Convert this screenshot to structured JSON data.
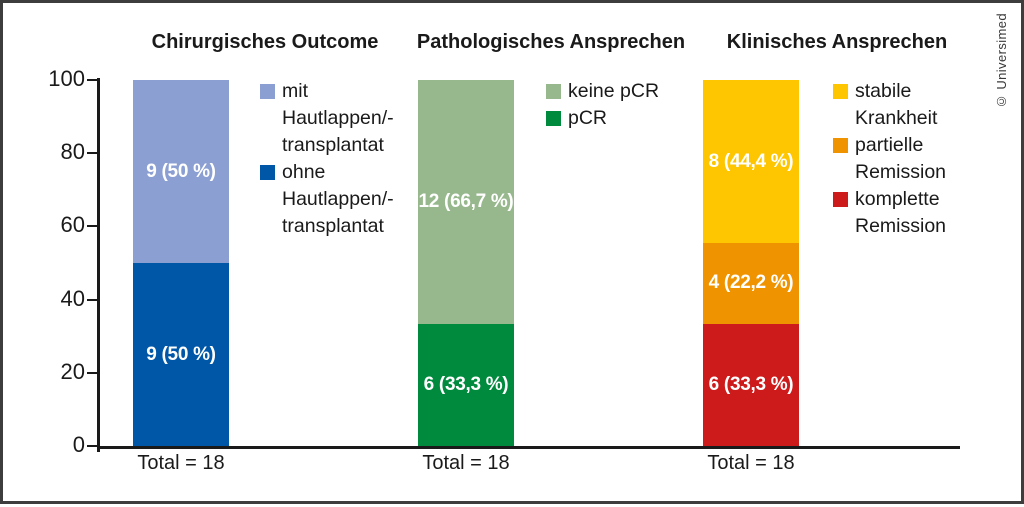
{
  "copyright": "© Universimed",
  "colors": {
    "axis": "#1a1a1a",
    "text": "#1a1a1a",
    "bar_label": "#ffffff",
    "frame": "#3d3d3d",
    "light_blue": "#8c9fd2",
    "dark_blue": "#0057a7",
    "light_green": "#97b78d",
    "dark_green": "#008a3e",
    "yellow": "#fdc600",
    "orange": "#f09300",
    "red": "#cd1a1a"
  },
  "chart_data": {
    "type": "bar",
    "stacked": true,
    "ylim": [
      0,
      100
    ],
    "yticks": [
      0,
      20,
      40,
      60,
      80,
      100
    ],
    "grid": false,
    "legend_position": "right-of-each-bar",
    "groups": [
      {
        "title": "Chirurgisches Outcome",
        "x_label": "Total = 18",
        "total": 18,
        "segments": [
          {
            "name": "ohne Hautlappen/-transplantat",
            "count": 9,
            "pct": 50,
            "display": "9 (50 %)",
            "color": "#0057a7"
          },
          {
            "name": "mit Hautlappen/-transplantat",
            "count": 9,
            "pct": 50,
            "display": "9 (50 %)",
            "color": "#8c9fd2"
          }
        ],
        "legend": [
          {
            "label": "mit\nHautlappen/-\ntransplantat",
            "color": "#8c9fd2"
          },
          {
            "label": "ohne\nHautlappen/-\ntransplantat",
            "color": "#0057a7"
          }
        ]
      },
      {
        "title": "Pathologisches Ansprechen",
        "x_label": "Total = 18",
        "total": 18,
        "segments": [
          {
            "name": "pCR",
            "count": 6,
            "pct": 33.3,
            "display": "6 (33,3 %)",
            "color": "#008a3e"
          },
          {
            "name": "keine pCR",
            "count": 12,
            "pct": 66.7,
            "display": "12 (66,7 %)",
            "color": "#97b78d"
          }
        ],
        "legend": [
          {
            "label": "keine pCR",
            "color": "#97b78d"
          },
          {
            "label": "pCR",
            "color": "#008a3e"
          }
        ]
      },
      {
        "title": "Klinisches Ansprechen",
        "x_label": "Total = 18",
        "total": 18,
        "segments": [
          {
            "name": "komplette Remission",
            "count": 6,
            "pct": 33.3,
            "display": "6 (33,3 %)",
            "color": "#cd1a1a"
          },
          {
            "name": "partielle Remission",
            "count": 4,
            "pct": 22.2,
            "display": "4 (22,2 %)",
            "color": "#f09300"
          },
          {
            "name": "stabile Krankheit",
            "count": 8,
            "pct": 44.4,
            "display": "8 (44,4 %)",
            "color": "#fdc600"
          }
        ],
        "legend": [
          {
            "label": "stabile\nKrankheit",
            "color": "#fdc600"
          },
          {
            "label": "partielle\nRemission",
            "color": "#f09300"
          },
          {
            "label": "komplette\nRemission",
            "color": "#cd1a1a"
          }
        ]
      }
    ]
  }
}
